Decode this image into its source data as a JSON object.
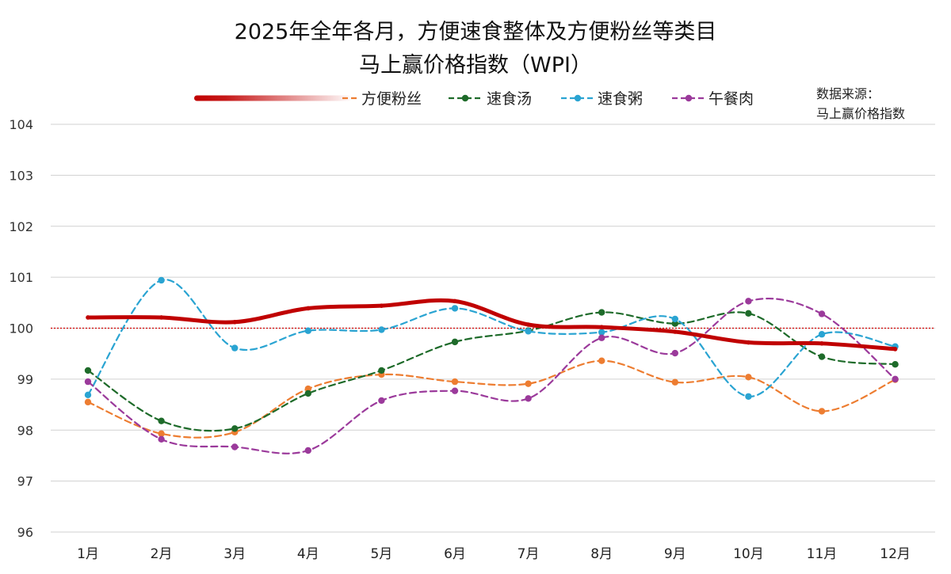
{
  "chart_data": {
    "type": "line",
    "title_lines": [
      "2025年全年各月，方便速食整体及方便粉丝等类目",
      "马上赢价格指数（WPI）"
    ],
    "source_lines": [
      "数据来源：",
      "马上赢价格指数"
    ],
    "categories": [
      "1月",
      "2月",
      "3月",
      "4月",
      "5月",
      "6月",
      "7月",
      "8月",
      "9月",
      "10月",
      "11月",
      "12月"
    ],
    "ylim": [
      96,
      104
    ],
    "yticks": [
      96,
      97,
      98,
      99,
      100,
      101,
      102,
      103,
      104
    ],
    "reference_line": 100,
    "grid": true,
    "legend_position": "top",
    "series": [
      {
        "name": "",
        "legend": true,
        "legend_label": false,
        "color": "#c00000",
        "dashed": false,
        "markers": false,
        "values": [
          100.21,
          100.21,
          100.12,
          100.39,
          100.44,
          100.53,
          100.07,
          100.02,
          99.93,
          99.72,
          99.7,
          99.59
        ]
      },
      {
        "name": "方便粉丝",
        "legend": true,
        "color": "#ed7d31",
        "dashed": true,
        "markers": true,
        "values": [
          98.55,
          97.93,
          97.96,
          98.81,
          99.09,
          98.95,
          98.91,
          99.36,
          98.94,
          99.04,
          98.37,
          98.99
        ]
      },
      {
        "name": "速食汤",
        "legend": true,
        "color": "#1e6b2a",
        "dashed": true,
        "markers": true,
        "values": [
          99.17,
          98.18,
          98.03,
          98.72,
          99.17,
          99.73,
          99.95,
          100.31,
          100.09,
          100.29,
          99.44,
          99.29
        ]
      },
      {
        "name": "速食粥",
        "legend": true,
        "color": "#2aa4d2",
        "dashed": true,
        "markers": true,
        "values": [
          98.69,
          100.94,
          99.61,
          99.95,
          99.97,
          100.39,
          99.94,
          99.92,
          100.18,
          98.66,
          99.88,
          99.64
        ]
      },
      {
        "name": "午餐肉",
        "legend": true,
        "color": "#9b3a9b",
        "dashed": true,
        "markers": true,
        "values": [
          98.95,
          97.82,
          97.67,
          97.6,
          98.58,
          98.77,
          98.62,
          99.81,
          99.51,
          100.53,
          100.28,
          99.0
        ]
      }
    ]
  }
}
